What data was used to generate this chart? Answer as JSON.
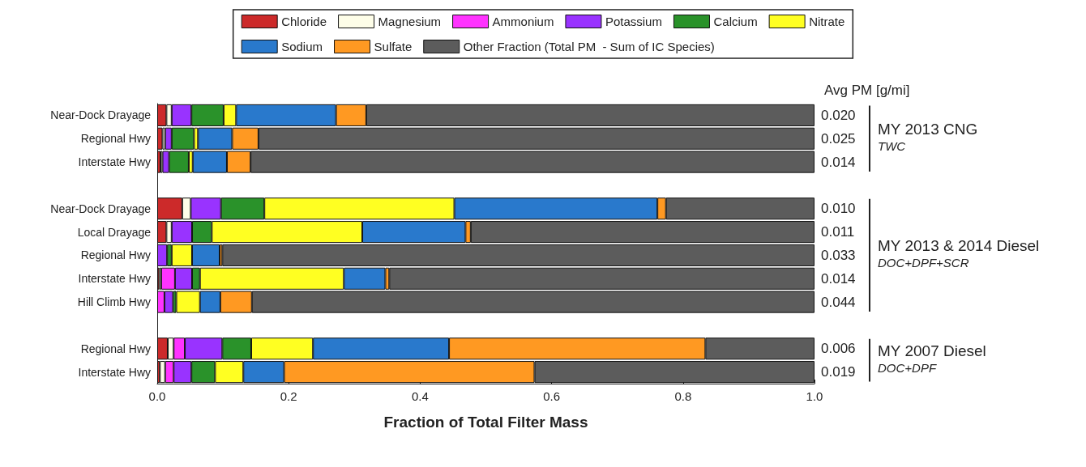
{
  "chart_data": {
    "type": "bar",
    "orientation": "horizontal",
    "stacked": true,
    "xlabel": "Fraction of Total Filter Mass",
    "categories": [
      "Near-Dock Drayage",
      "Regional Hwy",
      "Interstate Hwy",
      null,
      "Near-Dock Drayage",
      "Local Drayage",
      "Regional Hwy",
      "Interstate Hwy",
      "Hill Climb Hwy",
      null,
      "Regional Hwy",
      "Interstate Hwy"
    ],
    "series": [
      {
        "name": "Chloride",
        "color": "#cc2a2a",
        "values": [
          0.014,
          0.008,
          0.005,
          null,
          0.038,
          0.014,
          null,
          0.003,
          0,
          null,
          0.016,
          0.004
        ]
      },
      {
        "name": "Magnesium",
        "color": "#fdfde8",
        "values": [
          0.008,
          0.004,
          0.003,
          null,
          0.013,
          0.008,
          0,
          0.003,
          0,
          null,
          0.009,
          0.008
        ]
      },
      {
        "name": "Ammonium",
        "color": "#ff33ff",
        "values": [
          0,
          0,
          0,
          null,
          0,
          0,
          0,
          0.021,
          0.011,
          null,
          0.017,
          0.013
        ]
      },
      {
        "name": "Potassium",
        "color": "#9933ff",
        "values": [
          0.03,
          0.01,
          0.01,
          null,
          0.046,
          0.031,
          0.015,
          0.026,
          0.013,
          null,
          0.057,
          0.027
        ]
      },
      {
        "name": "Calcium",
        "color": "#2a922a",
        "values": [
          0.049,
          0.034,
          0.03,
          null,
          0.066,
          0.03,
          0.007,
          0.012,
          0.005,
          null,
          0.044,
          0.036
        ]
      },
      {
        "name": "Nitrate",
        "color": "#ffff22",
        "values": [
          0.019,
          0.006,
          0.006,
          null,
          0.289,
          0.229,
          0.031,
          0.219,
          0.036,
          null,
          0.094,
          0.043
        ]
      },
      {
        "name": "Sodium",
        "color": "#2979cc",
        "values": [
          0.152,
          0.052,
          0.052,
          null,
          0.309,
          0.157,
          0.042,
          0.063,
          0.031,
          null,
          0.207,
          0.062
        ]
      },
      {
        "name": "Sulfate",
        "color": "#ff9922",
        "values": [
          0.046,
          0.04,
          0.036,
          null,
          0.013,
          0.008,
          0.004,
          0.006,
          0.048,
          null,
          0.39,
          0.381
        ]
      },
      {
        "name": "Other Fraction (Total PM  - Sum of IC Species)",
        "color": "#5c5c5c",
        "values": [
          0.682,
          0.846,
          0.858,
          null,
          0.226,
          0.523,
          0.901,
          0.647,
          0.856,
          null,
          0.166,
          0.426
        ]
      }
    ],
    "xlim": [
      0,
      1
    ],
    "xticks": [
      {
        "value": 0,
        "label": "0.0"
      },
      {
        "value": 0.2,
        "label": "0.2"
      },
      {
        "value": 0.4,
        "label": "0.4"
      },
      {
        "value": 0.6,
        "label": "0.6"
      },
      {
        "value": 0.8,
        "label": "0.8"
      },
      {
        "value": 1,
        "label": "1.0"
      }
    ],
    "grid": false,
    "legend": "top",
    "annotations": [
      "Avg PM [g/mi]",
      "0.020",
      "0.025",
      "0.014",
      "0.010",
      "0.011",
      "0.033",
      "0.014",
      "0.044",
      "0.006",
      "0.019",
      "MY 2013 CNG",
      "TWC",
      "MY 2013 & 2014 Diesel",
      "DOC+DPF+SCR",
      "MY 2007 Diesel",
      "DOC+DPF"
    ]
  }
}
